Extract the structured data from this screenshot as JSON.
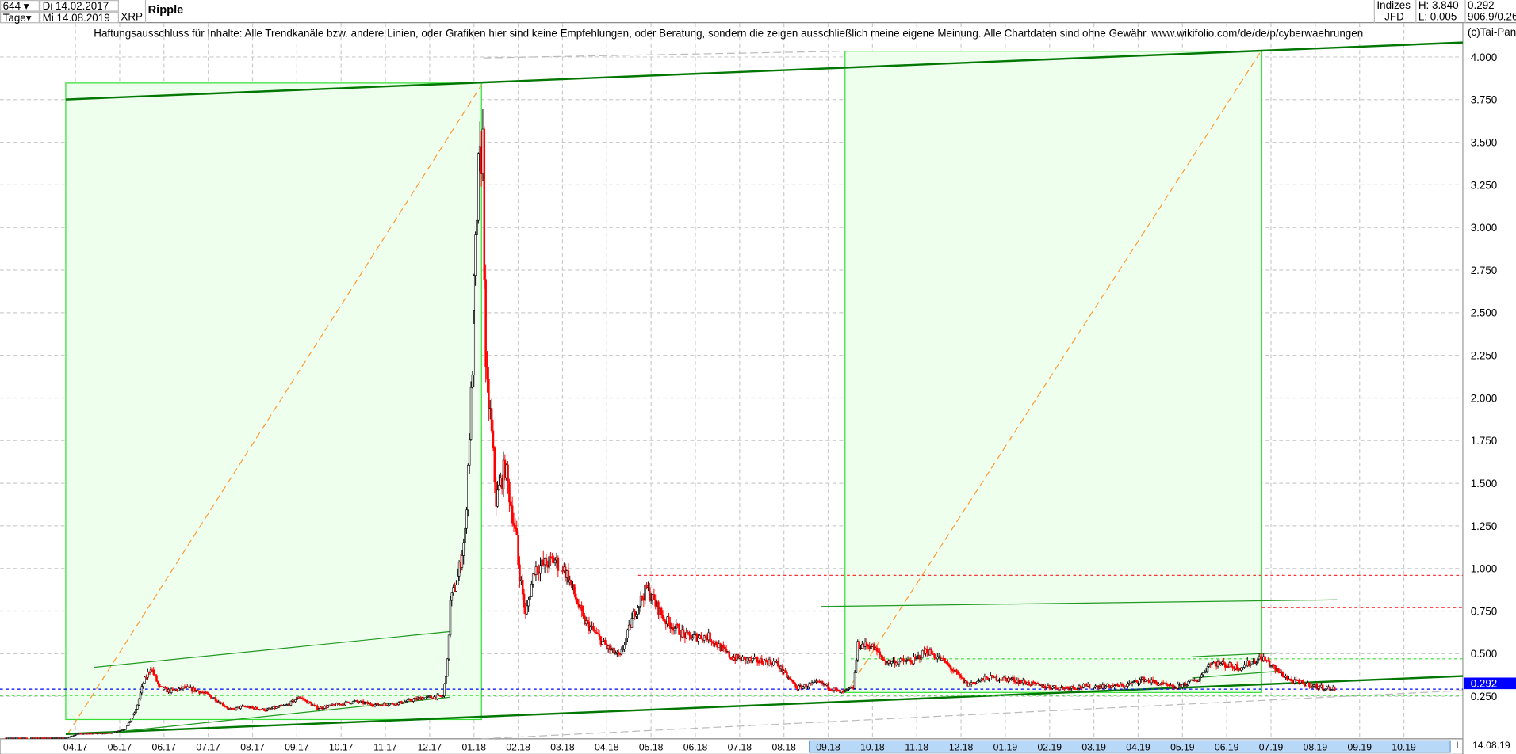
{
  "header": {
    "candles_count": "644",
    "period": "Tage",
    "start_date": "Di 14.02.2017",
    "end_date": "Mi 14.08.2019",
    "symbol": "XRP",
    "title": "Ripple",
    "group": "Indizes",
    "source": "JFD",
    "high": "H: 3.840",
    "low": "L: 0.005",
    "last": "0.292",
    "extra": "906.9/0.26"
  },
  "disclaimer": "Haftungsausschluss für Inhalte: Alle Trendkanäle bzw. andere Linien, oder Grafiken hier sind keine Empfehlungen, oder Beratung, sondern die zeigen ausschließlich meine eigene Meinung. Alle Chartdaten sind ohne Gewähr.  www.wikifolio.com/de/de/p/cyberwaehrungen",
  "copyright": "(c)Tai-Pan",
  "bottom_right_date": "14.08.19",
  "scale_mode": "L",
  "colors": {
    "up": "#000000",
    "down": "#ff0000",
    "channel": "#007700",
    "box_fill": "#eeffee",
    "box_stroke": "#33dd33",
    "diagonal": "#ff9933",
    "last_marker": "#0000ff",
    "range_highlight": "#b8d8f8"
  },
  "chart_data": {
    "type": "candlestick",
    "title": "Ripple",
    "y_ticks": [
      "4.000",
      "3.750",
      "3.500",
      "3.250",
      "3.000",
      "2.750",
      "2.500",
      "2.250",
      "2.000",
      "1.750",
      "1.500",
      "1.250",
      "1.000",
      "0.750",
      "0.500",
      "0.250"
    ],
    "x_ticks": [
      "04.17",
      "05.17",
      "06.17",
      "07.17",
      "08.17",
      "09.17",
      "10.17",
      "11.17",
      "12.17",
      "01.18",
      "02.18",
      "03.18",
      "04.18",
      "05.18",
      "06.18",
      "07.18",
      "08.18",
      "09.18",
      "10.18",
      "11.18",
      "12.18",
      "01.19",
      "02.19",
      "03.19",
      "04.19",
      "05.19",
      "06.19",
      "07.19",
      "08.19",
      "09.19",
      "10.19"
    ],
    "ylim": [
      0.0,
      4.1
    ],
    "last_value": 0.292,
    "grid": true,
    "closes": [
      [
        "2017-02-14",
        0.006
      ],
      [
        "2017-03-25",
        0.007
      ],
      [
        "2017-04-02",
        0.03
      ],
      [
        "2017-04-25",
        0.035
      ],
      [
        "2017-05-05",
        0.06
      ],
      [
        "2017-05-12",
        0.17
      ],
      [
        "2017-05-17",
        0.33
      ],
      [
        "2017-05-22",
        0.42
      ],
      [
        "2017-05-28",
        0.3
      ],
      [
        "2017-06-05",
        0.28
      ],
      [
        "2017-06-15",
        0.3
      ],
      [
        "2017-06-25",
        0.28
      ],
      [
        "2017-07-05",
        0.24
      ],
      [
        "2017-07-16",
        0.17
      ],
      [
        "2017-07-25",
        0.19
      ],
      [
        "2017-08-10",
        0.17
      ],
      [
        "2017-08-25",
        0.2
      ],
      [
        "2017-09-02",
        0.25
      ],
      [
        "2017-09-15",
        0.18
      ],
      [
        "2017-09-28",
        0.2
      ],
      [
        "2017-10-10",
        0.22
      ],
      [
        "2017-10-25",
        0.2
      ],
      [
        "2017-11-10",
        0.21
      ],
      [
        "2017-11-25",
        0.24
      ],
      [
        "2017-12-10",
        0.25
      ],
      [
        "2017-12-13",
        0.45
      ],
      [
        "2017-12-15",
        0.8
      ],
      [
        "2017-12-20",
        0.95
      ],
      [
        "2017-12-25",
        1.2
      ],
      [
        "2017-12-30",
        2.2
      ],
      [
        "2018-01-04",
        3.3
      ],
      [
        "2018-01-07",
        3.5
      ],
      [
        "2018-01-09",
        2.1
      ],
      [
        "2018-01-12",
        1.9
      ],
      [
        "2018-01-16",
        1.4
      ],
      [
        "2018-01-22",
        1.6
      ],
      [
        "2018-01-31",
        1.1
      ],
      [
        "2018-02-06",
        0.72
      ],
      [
        "2018-02-12",
        1.0
      ],
      [
        "2018-02-26",
        1.05
      ],
      [
        "2018-03-05",
        0.95
      ],
      [
        "2018-03-15",
        0.7
      ],
      [
        "2018-03-30",
        0.55
      ],
      [
        "2018-04-10",
        0.48
      ],
      [
        "2018-04-20",
        0.75
      ],
      [
        "2018-04-28",
        0.88
      ],
      [
        "2018-05-10",
        0.7
      ],
      [
        "2018-05-25",
        0.6
      ],
      [
        "2018-06-10",
        0.6
      ],
      [
        "2018-06-25",
        0.48
      ],
      [
        "2018-07-10",
        0.46
      ],
      [
        "2018-07-25",
        0.45
      ],
      [
        "2018-08-10",
        0.3
      ],
      [
        "2018-08-25",
        0.33
      ],
      [
        "2018-09-10",
        0.27
      ],
      [
        "2018-09-18",
        0.3
      ],
      [
        "2018-09-21",
        0.55
      ],
      [
        "2018-09-30",
        0.55
      ],
      [
        "2018-10-10",
        0.45
      ],
      [
        "2018-10-30",
        0.46
      ],
      [
        "2018-11-08",
        0.52
      ],
      [
        "2018-11-20",
        0.45
      ],
      [
        "2018-12-05",
        0.32
      ],
      [
        "2018-12-20",
        0.36
      ],
      [
        "2019-01-05",
        0.35
      ],
      [
        "2019-01-25",
        0.31
      ],
      [
        "2019-02-10",
        0.3
      ],
      [
        "2019-02-28",
        0.31
      ],
      [
        "2019-03-20",
        0.31
      ],
      [
        "2019-04-05",
        0.35
      ],
      [
        "2019-04-25",
        0.3
      ],
      [
        "2019-05-12",
        0.35
      ],
      [
        "2019-05-20",
        0.45
      ],
      [
        "2019-06-10",
        0.42
      ],
      [
        "2019-06-25",
        0.48
      ],
      [
        "2019-07-05",
        0.4
      ],
      [
        "2019-07-15",
        0.34
      ],
      [
        "2019-07-31",
        0.31
      ],
      [
        "2019-08-14",
        0.292
      ]
    ]
  }
}
